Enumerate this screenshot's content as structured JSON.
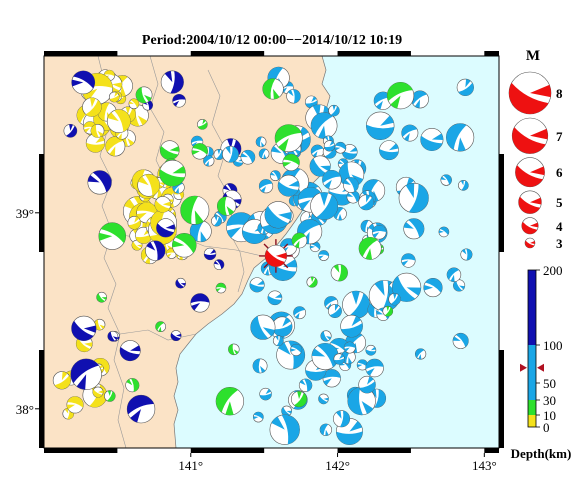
{
  "map": {
    "title": "Period:2004/10/12 00:00−−2014/10/12 10:19",
    "lon_range": [
      140.0,
      143.1
    ],
    "lat_range": [
      37.8,
      39.8
    ],
    "lon_ticks": [
      {
        "value": 141,
        "label": "141°"
      },
      {
        "value": 142,
        "label": "142°"
      },
      {
        "value": 143,
        "label": "143°"
      }
    ],
    "lat_ticks": [
      {
        "value": 39,
        "label": "39°"
      },
      {
        "value": 38,
        "label": "38°"
      }
    ],
    "colors": {
      "land": "#fbe3c6",
      "sea": "#dcfcff",
      "shallow": "#f4e11b",
      "mid": "#2de02d",
      "deep_mid": "#1aa6e6",
      "deep": "#1010b0",
      "mainshock": "#ee1111"
    },
    "mainshock": {
      "lon": 141.58,
      "lat": 38.78,
      "mag": 4.5
    }
  },
  "magnitude_legend": {
    "title": "M",
    "items": [
      {
        "label": "8",
        "mag": 8
      },
      {
        "label": "7",
        "mag": 7
      },
      {
        "label": "6",
        "mag": 6
      },
      {
        "label": "5",
        "mag": 5
      },
      {
        "label": "4",
        "mag": 4
      },
      {
        "label": "3",
        "mag": 3
      }
    ]
  },
  "depth_scale": {
    "title": "Depth(km)",
    "ticks": [
      {
        "value": 200,
        "label": "200"
      },
      {
        "value": 100,
        "label": "100"
      },
      {
        "value": 50,
        "label": "50"
      },
      {
        "value": 30,
        "label": "30"
      },
      {
        "value": 10,
        "label": "10"
      },
      {
        "value": 0,
        "label": "0"
      }
    ],
    "marker_depth": 70
  }
}
